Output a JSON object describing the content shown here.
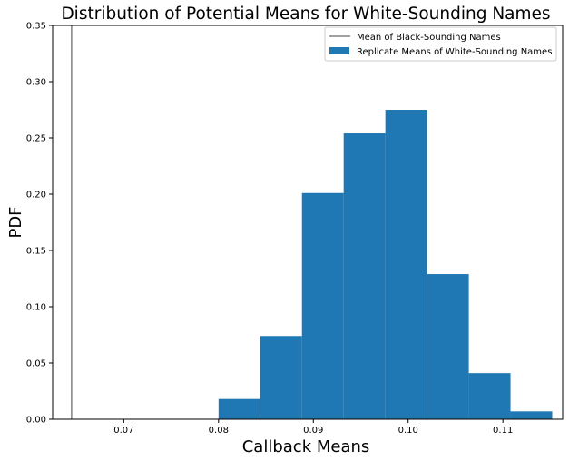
{
  "chart_data": {
    "type": "bar",
    "title": "Distribution of Potential Means for White-Sounding Names",
    "xlabel": "Callback Means",
    "ylabel": "PDF",
    "xlim": [
      0.0625,
      0.1163
    ],
    "ylim": [
      0,
      0.35
    ],
    "x_ticks": [
      0.07,
      0.08,
      0.09,
      0.1,
      0.11
    ],
    "x_tick_labels": [
      "0.07",
      "0.08",
      "0.09",
      "0.10",
      "0.11"
    ],
    "y_ticks": [
      0,
      0.05,
      0.1,
      0.15,
      0.2,
      0.25,
      0.3,
      0.35
    ],
    "y_tick_labels": [
      "0.00",
      "0.05",
      "0.10",
      "0.15",
      "0.20",
      "0.25",
      "0.30",
      "0.35"
    ],
    "grid": false,
    "legend_position": "top-right",
    "bar_color": "#1f77b4",
    "vline_color": "#808080",
    "series": [
      {
        "name": "Replicate Means of White-Sounding Names",
        "kind": "histogram",
        "bin_edges": [
          0.08,
          0.0844,
          0.0888,
          0.0932,
          0.0976,
          0.102,
          0.1064,
          0.1108,
          0.1152
        ],
        "values": [
          0.018,
          0.074,
          0.201,
          0.254,
          0.275,
          0.129,
          0.041,
          0.007
        ]
      },
      {
        "name": "Mean of Black-Sounding Names",
        "kind": "vline",
        "x": 0.0645
      }
    ]
  }
}
